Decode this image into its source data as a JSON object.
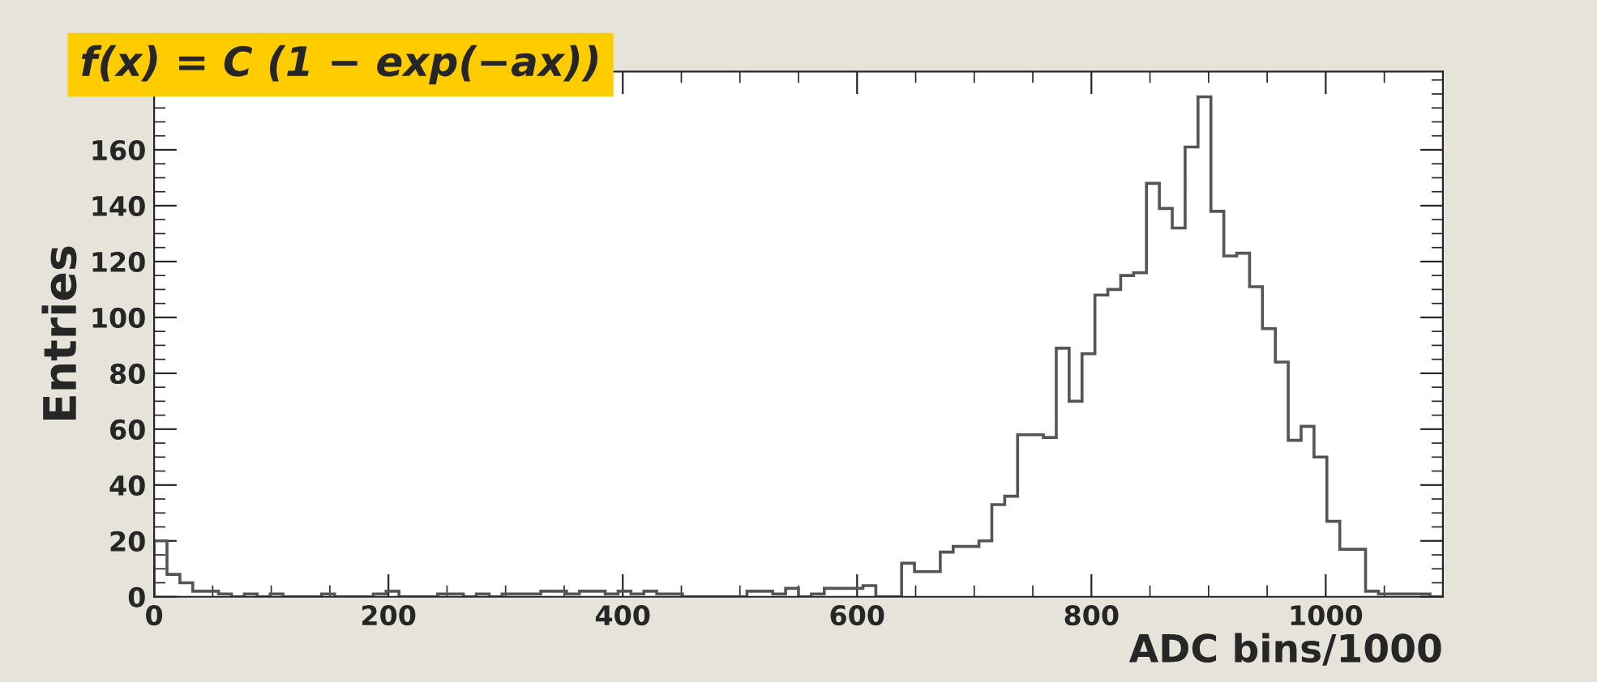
{
  "chart_data": {
    "type": "histogram",
    "xlabel": "ADC bins/1000",
    "ylabel": "Entries",
    "annotations": [
      "f(x) = C (1 − exp(−ax))"
    ],
    "bins": [
      0,
      11,
      22,
      33,
      44,
      55,
      66,
      77,
      88,
      99,
      110,
      121,
      132,
      143,
      154,
      165,
      176,
      187,
      198,
      209,
      220,
      231,
      242,
      253,
      264,
      275,
      286,
      297,
      308,
      319,
      330,
      341,
      352,
      363,
      374,
      385,
      396,
      407,
      418,
      429,
      440,
      451,
      462,
      473,
      484,
      495,
      506,
      517,
      528,
      539,
      550,
      561,
      572,
      583,
      594,
      605,
      616,
      627,
      638,
      649,
      660,
      671,
      682,
      693,
      704,
      715,
      726,
      737,
      748,
      759,
      770,
      781,
      792,
      803,
      814,
      825,
      836,
      847,
      858,
      869,
      880,
      891,
      902,
      913,
      924,
      935,
      946,
      957,
      968,
      979,
      990,
      1001,
      1012,
      1023,
      1034,
      1045,
      1056,
      1067,
      1078,
      1089,
      1100
    ],
    "values": [
      20,
      8,
      5,
      2,
      2,
      1,
      0,
      1,
      0,
      1,
      0,
      0,
      0,
      1,
      0,
      0,
      0,
      1,
      2,
      0,
      0,
      0,
      1,
      1,
      0,
      1,
      0,
      1,
      1,
      1,
      2,
      2,
      1,
      2,
      2,
      1,
      2,
      1,
      2,
      1,
      1,
      0,
      0,
      0,
      0,
      0,
      2,
      2,
      1,
      3,
      0,
      1,
      3,
      3,
      3,
      4,
      0,
      0,
      12,
      9,
      9,
      16,
      18,
      18,
      20,
      33,
      36,
      58,
      58,
      57,
      89,
      70,
      87,
      108,
      110,
      115,
      116,
      148,
      139,
      132,
      161,
      179,
      138,
      122,
      123,
      111,
      96,
      84,
      56,
      61,
      50,
      27,
      17,
      17,
      2,
      1,
      1,
      1,
      1,
      0
    ],
    "color": "#555555",
    "xlim": [
      0,
      1100
    ],
    "ylim": [
      0,
      188
    ],
    "xticks": [
      0,
      200,
      400,
      600,
      800,
      1000
    ],
    "yticks": [
      0,
      20,
      40,
      60,
      80,
      100,
      120,
      140,
      160
    ],
    "grid": false,
    "legend": false
  }
}
